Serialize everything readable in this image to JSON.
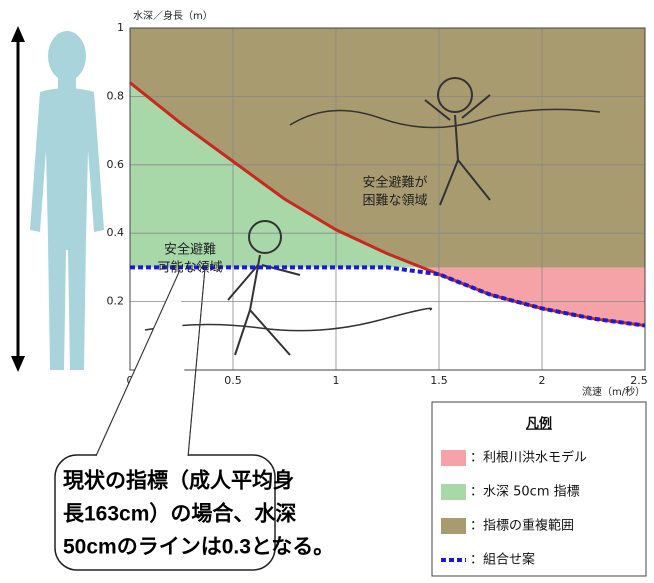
{
  "chart_data": {
    "type": "line",
    "y_label": "水深／身長（m）",
    "x_label": "流速（m/秒）",
    "x": [
      0,
      0.25,
      0.5,
      0.75,
      1,
      1.25,
      1.5,
      1.75,
      2,
      2.25,
      2.5
    ],
    "series": [
      {
        "color": "#c8281e",
        "values": [
          0.84,
          0.72,
          0.61,
          0.5,
          0.41,
          0.34,
          0.28,
          0.22,
          0.18,
          0.15,
          0.13
        ]
      },
      {
        "color": "#1a1adc",
        "dashed": true,
        "values": [
          0.3,
          0.3,
          0.3,
          0.3,
          0.3,
          0.3,
          0.28,
          0.22,
          0.18,
          0.15,
          0.13
        ]
      }
    ],
    "xlim": [
      0,
      2.5
    ],
    "ylim": [
      0,
      1
    ],
    "xticks": [
      0,
      0.5,
      1,
      1.5,
      2,
      2.5
    ],
    "yticks": [
      0.2,
      0.4,
      0.6,
      0.8,
      1
    ],
    "grid": true,
    "annotations": [
      [
        "安全避難が",
        "困難な領域"
      ],
      [
        "安全避難",
        "可能な領域"
      ]
    ],
    "legend": {
      "title": "凡例",
      "entries": [
        {
          "label": "：利根川洪水モデル",
          "color": "#f6a3a8"
        },
        {
          "label": "：水深 50cm 指標",
          "color": "#a8d8a8"
        },
        {
          "label": "：指標の重複範囲",
          "color": "#a89b70"
        },
        {
          "label": "：組合せ案",
          "color": "#1a1adc",
          "dashed": true
        }
      ]
    },
    "callout": [
      "現状の指標（成人平均身",
      "長163cm）の場合、水深",
      "50cmのラインは0.3となる。"
    ]
  }
}
